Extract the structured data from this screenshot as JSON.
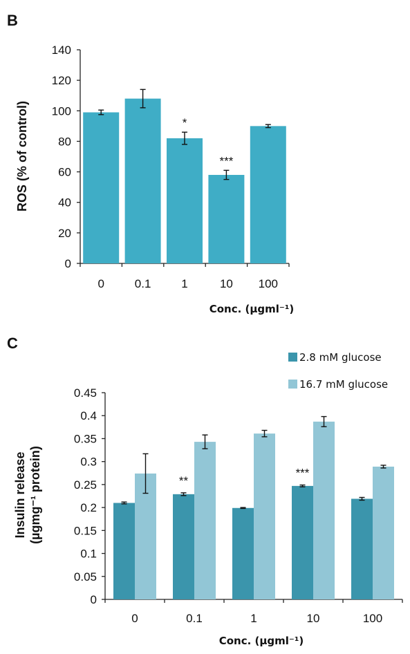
{
  "chart_data": [
    {
      "panel": "B",
      "type": "bar",
      "xlabel": "Conc. (µgml⁻¹)",
      "ylabel": "ROS (% of control)",
      "ylim": [
        0,
        140
      ],
      "yticks": [
        "0",
        "20",
        "40",
        "60",
        "80",
        "100",
        "120",
        "140"
      ],
      "categories": [
        "0",
        "0.1",
        "1",
        "10",
        "100"
      ],
      "series": [
        {
          "values": [
            99,
            108,
            82,
            58,
            90
          ],
          "errors": [
            1.5,
            6,
            4,
            3,
            1
          ],
          "color": "#3fadc6"
        }
      ],
      "annotations": [
        "",
        "",
        "*",
        "***",
        ""
      ]
    },
    {
      "panel": "C",
      "type": "bar",
      "xlabel": "Conc. (µgml⁻¹)",
      "ylabel": [
        "Insulin release",
        "(µgmg⁻¹ protein)"
      ],
      "ylim": [
        0,
        0.45
      ],
      "yticks": [
        "0",
        "0.05",
        "0.1",
        "0.15",
        "0.2",
        "0.25",
        "0.3",
        "0.35",
        "0.4",
        "0.45"
      ],
      "categories": [
        "0",
        "0.1",
        "1",
        "10",
        "100"
      ],
      "series": [
        {
          "name": "2.8 mM glucose",
          "values": [
            0.21,
            0.229,
            0.199,
            0.247,
            0.219
          ],
          "errors": [
            0.002,
            0.003,
            0.001,
            0.002,
            0.003
          ],
          "color": "#3b95ac"
        },
        {
          "name": "16.7 mM glucose",
          "values": [
            0.274,
            0.343,
            0.361,
            0.387,
            0.289
          ],
          "errors": [
            0.043,
            0.015,
            0.007,
            0.011,
            0.003
          ],
          "color": "#92c6d6"
        }
      ],
      "legend_position": "top-right",
      "annotations": [
        "",
        "**",
        "",
        "***",
        ""
      ]
    }
  ]
}
